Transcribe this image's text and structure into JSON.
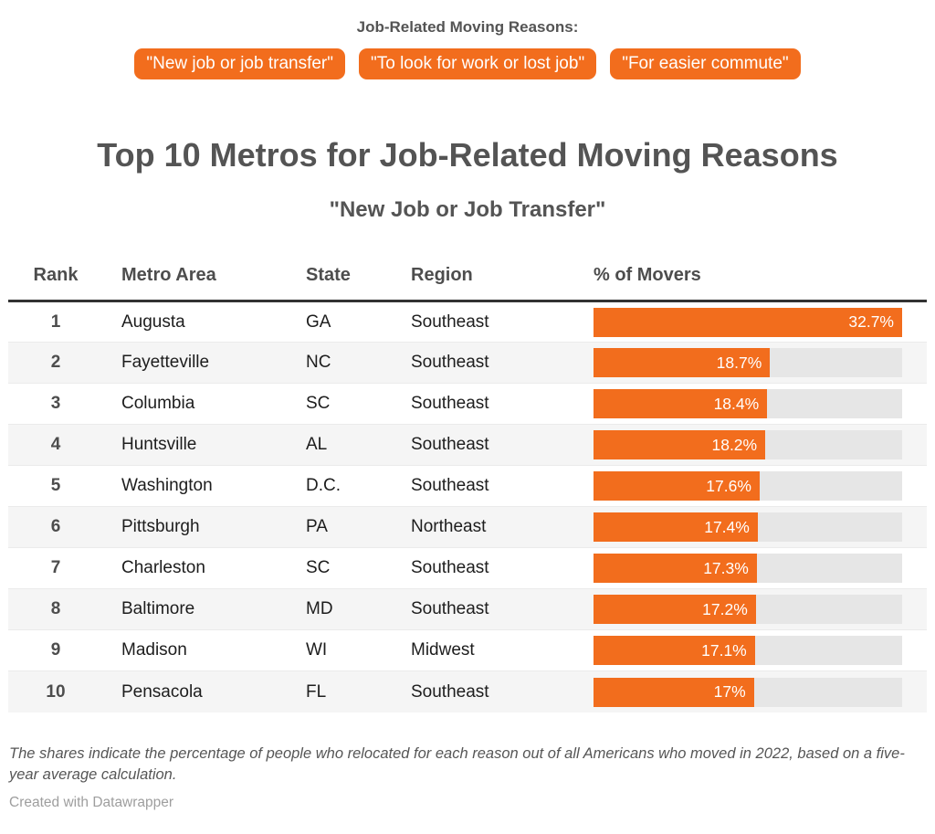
{
  "legend": {
    "heading": "Job-Related Moving Reasons:",
    "pills": [
      "\"New job or job transfer\"",
      "\"To look for work or lost job\"",
      "\"For easier commute\""
    ]
  },
  "title": "Top 10 Metros for Job-Related Moving Reasons",
  "subtitle": "\"New Job or Job Transfer\"",
  "chart_data": {
    "type": "table",
    "title": "Top 10 Metros for Job-Related Moving Reasons",
    "subtitle": "\"New Job or Job Transfer\"",
    "columns": [
      "Rank",
      "Metro Area",
      "State",
      "Region",
      "% of Movers"
    ],
    "rows": [
      {
        "rank": "1",
        "metro": "Augusta",
        "state": "GA",
        "region": "Southeast",
        "pct": 32.7,
        "pct_label": "32.7%"
      },
      {
        "rank": "2",
        "metro": "Fayetteville",
        "state": "NC",
        "region": "Southeast",
        "pct": 18.7,
        "pct_label": "18.7%"
      },
      {
        "rank": "3",
        "metro": "Columbia",
        "state": "SC",
        "region": "Southeast",
        "pct": 18.4,
        "pct_label": "18.4%"
      },
      {
        "rank": "4",
        "metro": "Huntsville",
        "state": "AL",
        "region": "Southeast",
        "pct": 18.2,
        "pct_label": "18.2%"
      },
      {
        "rank": "5",
        "metro": "Washington",
        "state": "D.C.",
        "region": "Southeast",
        "pct": 17.6,
        "pct_label": "17.6%"
      },
      {
        "rank": "6",
        "metro": "Pittsburgh",
        "state": "PA",
        "region": "Northeast",
        "pct": 17.4,
        "pct_label": "17.4%"
      },
      {
        "rank": "7",
        "metro": "Charleston",
        "state": "SC",
        "region": "Southeast",
        "pct": 17.3,
        "pct_label": "17.3%"
      },
      {
        "rank": "8",
        "metro": "Baltimore",
        "state": "MD",
        "region": "Southeast",
        "pct": 17.2,
        "pct_label": "17.2%"
      },
      {
        "rank": "9",
        "metro": "Madison",
        "state": "WI",
        "region": "Midwest",
        "pct": 17.1,
        "pct_label": "17.1%"
      },
      {
        "rank": "10",
        "metro": "Pensacola",
        "state": "FL",
        "region": "Southeast",
        "pct": 17.0,
        "pct_label": "17%"
      }
    ],
    "bar_scale_max": 32.7,
    "bar_color": "#f26d1d",
    "bar_track_color": "#e6e6e6",
    "legend_position": "top"
  },
  "footer": {
    "note": "The shares indicate the percentage of people who relocated for each reason out of all Americans who moved in 2022, based on a five-year average calculation.",
    "credit": "Created with Datawrapper"
  },
  "colors": {
    "accent_orange": "#f26d1d",
    "bar_track": "#e6e6e6",
    "alt_row_bg": "#f5f5f5",
    "heading_text": "#545454",
    "header_rule": "#333333"
  }
}
